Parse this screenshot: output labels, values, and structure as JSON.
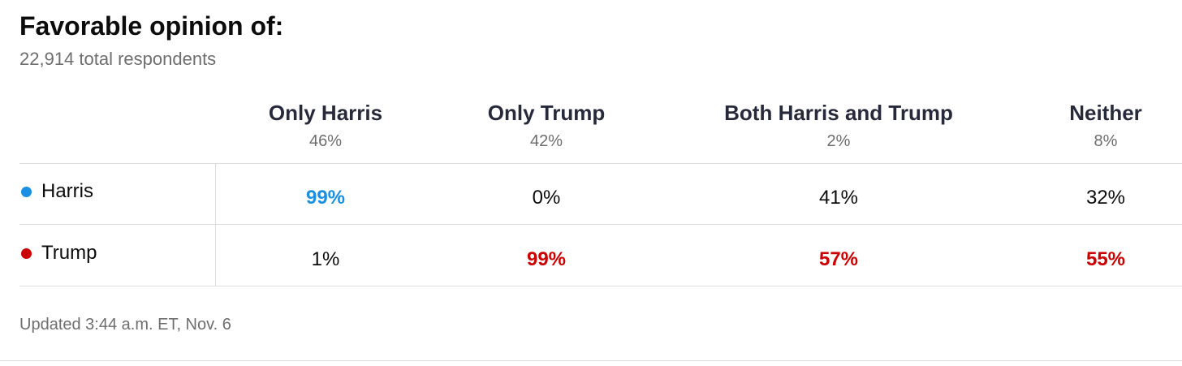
{
  "header": {
    "title": "Favorable opinion of:",
    "subtitle": "22,914 total respondents"
  },
  "table": {
    "columns": [
      {
        "name": "Only Harris",
        "share": "46%"
      },
      {
        "name": "Only Trump",
        "share": "42%"
      },
      {
        "name": "Both Harris and Trump",
        "share": "2%"
      },
      {
        "name": "Neither",
        "share": "8%"
      }
    ],
    "rows": [
      {
        "name": "Harris",
        "color": "#1a8fe3",
        "cells": [
          "99%",
          "0%",
          "41%",
          "32%"
        ]
      },
      {
        "name": "Trump",
        "color": "#cc0000",
        "cells": [
          "1%",
          "99%",
          "57%",
          "55%"
        ]
      }
    ]
  },
  "footer": "Updated 3:44 a.m. ET, Nov. 6"
}
